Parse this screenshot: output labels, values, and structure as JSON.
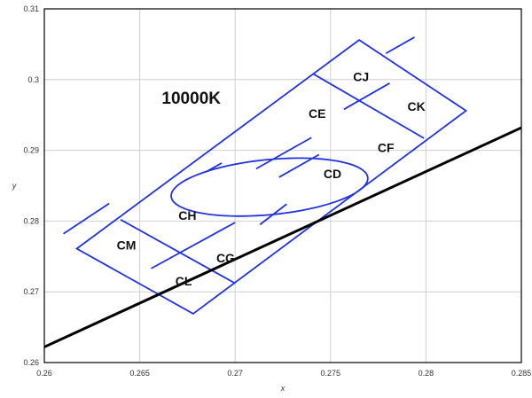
{
  "chart_data": {
    "type": "line",
    "xlabel": "x",
    "ylabel": "y",
    "xlim": [
      0.26,
      0.285
    ],
    "ylim": [
      0.26,
      0.31
    ],
    "xticks": [
      "0.26",
      "0.265",
      "0.27",
      "0.275",
      "0.28",
      "0.285"
    ],
    "yticks": [
      "0.26",
      "0.27",
      "0.28",
      "0.29",
      "0.3",
      "0.31"
    ],
    "grid": true,
    "blackbody_line": {
      "color": "#000000",
      "x": [
        0.26,
        0.285
      ],
      "y": [
        0.2622,
        0.2932
      ]
    },
    "cct_label": {
      "text": "10000K",
      "x": 0.2677,
      "y": 0.2975
    },
    "outline_color": "#2233dd",
    "outline": [
      [
        0.2617,
        0.2761
      ],
      [
        0.2765,
        0.3056
      ],
      [
        0.2821,
        0.2956
      ],
      [
        0.2678,
        0.2669
      ]
    ],
    "ellipse": {
      "center": [
        0.2718,
        0.2848
      ],
      "semi_axes": [
        0.00545,
        0.0037
      ],
      "rotation_deg": 26.3
    },
    "divider_segments": [
      [
        [
          0.264,
          0.2802
        ],
        [
          0.27,
          0.2712
        ]
      ],
      [
        [
          0.2656,
          0.2733
        ],
        [
          0.27,
          0.2798
        ]
      ],
      [
        [
          0.261,
          0.2782
        ],
        [
          0.2634,
          0.2825
        ]
      ],
      [
        [
          0.2713,
          0.2795
        ],
        [
          0.2727,
          0.2824
        ]
      ],
      [
        [
          0.2741,
          0.3008
        ],
        [
          0.2799,
          0.2917
        ]
      ],
      [
        [
          0.2711,
          0.2874
        ],
        [
          0.274,
          0.2918
        ]
      ],
      [
        [
          0.2757,
          0.2958
        ],
        [
          0.2781,
          0.2995
        ]
      ],
      [
        [
          0.2685,
          0.287
        ],
        [
          0.2693,
          0.2882
        ]
      ],
      [
        [
          0.2723,
          0.2862
        ],
        [
          0.2744,
          0.2894
        ]
      ],
      [
        [
          0.2779,
          0.3037
        ],
        [
          0.2794,
          0.306
        ]
      ]
    ],
    "regions": [
      {
        "label": "CJ",
        "x": 0.2766,
        "y": 0.3004
      },
      {
        "label": "CE",
        "x": 0.2743,
        "y": 0.2952
      },
      {
        "label": "CK",
        "x": 0.2795,
        "y": 0.2962
      },
      {
        "label": "CF",
        "x": 0.2779,
        "y": 0.2904
      },
      {
        "label": "CD",
        "x": 0.2751,
        "y": 0.2867
      },
      {
        "label": "CH",
        "x": 0.2675,
        "y": 0.2808
      },
      {
        "label": "CM",
        "x": 0.2643,
        "y": 0.2766
      },
      {
        "label": "CG",
        "x": 0.2695,
        "y": 0.2748
      },
      {
        "label": "CL",
        "x": 0.2673,
        "y": 0.2715
      }
    ]
  }
}
